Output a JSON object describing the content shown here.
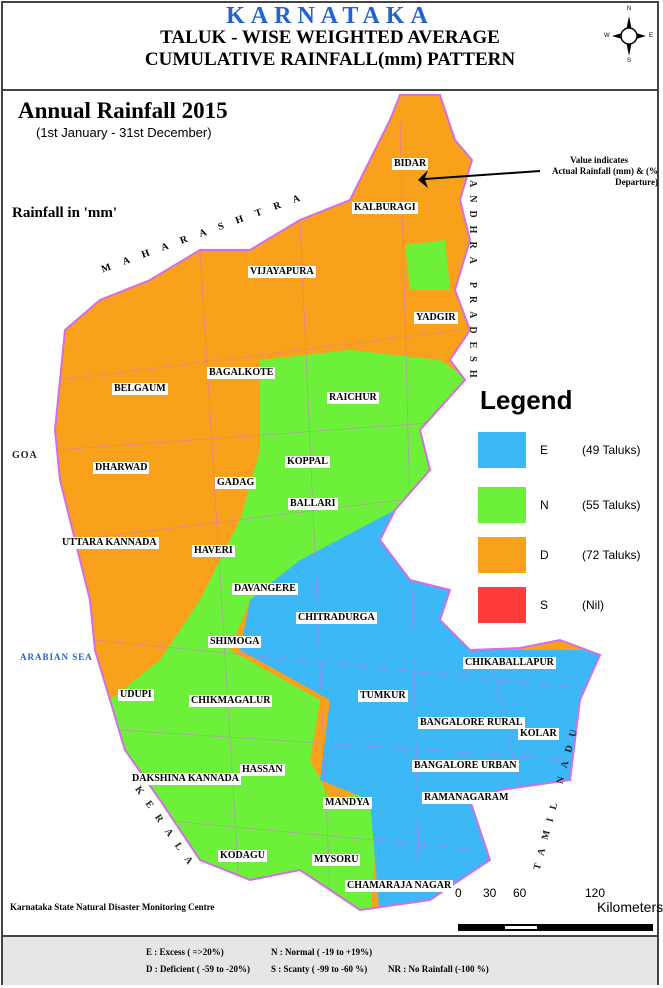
{
  "header": {
    "state": "KARNATAKA",
    "line1": "TALUK - WISE  WEIGHTED AVERAGE",
    "line2": "CUMULATIVE RAINFALL(mm) PATTERN",
    "compass": {
      "n": "N",
      "s": "S",
      "e": "E",
      "w": "W"
    }
  },
  "map": {
    "title": "Annual Rainfall 2015",
    "period": "(1st January - 31st December)",
    "unit_label": "Rainfall  in 'mm'",
    "note": [
      "Value indicates",
      "Actual Rainfall (mm) & (% Departure)"
    ],
    "neighbors": {
      "maharashtra": "MAHARASHTRA",
      "goa": "GOA",
      "sea": "ARABIAN SEA",
      "kerala": "KERALA",
      "tamilnadu": "TAMIL NADU",
      "andhra": "ANDHRA PRADESH"
    },
    "districts": [
      "BIDAR",
      "KALBURAGI",
      "VIJAYAPURA",
      "YADGIR",
      "BAGALKOTE",
      "RAICHUR",
      "BELGAUM",
      "KOPPAL",
      "DHARWAD",
      "GADAG",
      "BALLARI",
      "UTTARA KANNADA",
      "HAVERI",
      "DAVANGERE",
      "CHITRADURGA",
      "SHIMOGA",
      "UDUPI",
      "CHIKMAGALUR",
      "TUMKUR",
      "CHIKABALLAPUR",
      "BANGALORE RURAL",
      "KOLAR",
      "BANGALORE URBAN",
      "DAKSHINA KANNADA",
      "HASSAN",
      "MANDYA",
      "RAMANAGARAM",
      "KODAGU",
      "MYSORU",
      "CHAMARAJA NAGAR"
    ],
    "colors": {
      "excess": "#3cb8f6",
      "normal": "#6cf03a",
      "deficient": "#f9a11b",
      "scanty": "#ff3b3b",
      "border": "#d36fe3"
    }
  },
  "legend": {
    "title": "Legend",
    "items": [
      {
        "code": "E",
        "count": "(49 Taluks)",
        "color": "#3cb8f6"
      },
      {
        "code": "N",
        "count": "(55 Taluks)",
        "color": "#6cf03a"
      },
      {
        "code": "D",
        "count": "(72 Taluks)",
        "color": "#f9a11b"
      },
      {
        "code": "S",
        "count": "(Nil)",
        "color": "#ff3b3b"
      }
    ]
  },
  "scale": {
    "ticks": [
      "0",
      "30",
      "60",
      "120"
    ],
    "unit": "Kilometers"
  },
  "credit": "Karnataka State Natural Disaster Monitoring Centre",
  "footer": {
    "e": "E    : Excess ( =>20%)",
    "n": "N  : Normal ( -19  to +19%)",
    "d": "D    : Deficient ( -59 to -20%)",
    "s": "S  : Scanty ( -99 to -60 %)",
    "nr": "NR  :  No Rainfall (-100 %)"
  }
}
